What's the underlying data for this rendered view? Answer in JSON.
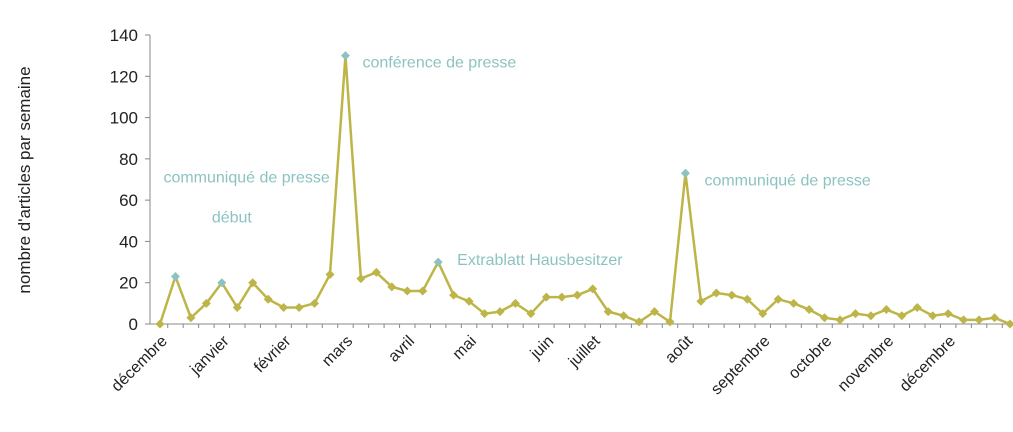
{
  "chart_data": {
    "type": "line",
    "ylabel": "nombre d'articles par semaine",
    "ylim": [
      0,
      140
    ],
    "yticks": [
      0,
      20,
      40,
      60,
      80,
      100,
      120,
      140
    ],
    "categories": [
      "décembre",
      null,
      null,
      null,
      "janvier",
      null,
      null,
      null,
      "février",
      null,
      null,
      null,
      "mars",
      null,
      null,
      null,
      "avril",
      null,
      null,
      null,
      "mai",
      null,
      null,
      null,
      null,
      "juin",
      null,
      null,
      "juillet",
      null,
      null,
      null,
      null,
      null,
      "août",
      null,
      null,
      null,
      null,
      "septembre",
      null,
      null,
      null,
      "octobre",
      null,
      null,
      null,
      "novembre",
      null,
      null,
      null,
      "décembre",
      null,
      null,
      null,
      null
    ],
    "series": [
      {
        "name": "articles",
        "color": "#bdb547",
        "highlight_color": "#8cc3c2",
        "values": [
          0,
          23,
          3,
          10,
          20,
          8,
          20,
          12,
          8,
          8,
          10,
          24,
          130,
          22,
          25,
          18,
          16,
          16,
          30,
          14,
          11,
          5,
          6,
          10,
          5,
          13,
          13,
          14,
          17,
          6,
          4,
          1,
          6,
          1,
          73,
          11,
          15,
          14,
          12,
          5,
          12,
          10,
          7,
          3,
          2,
          5,
          4,
          7,
          4,
          8,
          4,
          5,
          2,
          2,
          3,
          0
        ]
      }
    ],
    "annotations": [
      {
        "text": "communiqué  de presse",
        "point": 1
      },
      {
        "text": "début",
        "point": 4
      },
      {
        "text": "conférence de presse",
        "point": 12
      },
      {
        "text": "Extrablatt  Hausbesitzer",
        "point": 18
      },
      {
        "text": "communiqué  de presse",
        "point": 34
      }
    ]
  }
}
